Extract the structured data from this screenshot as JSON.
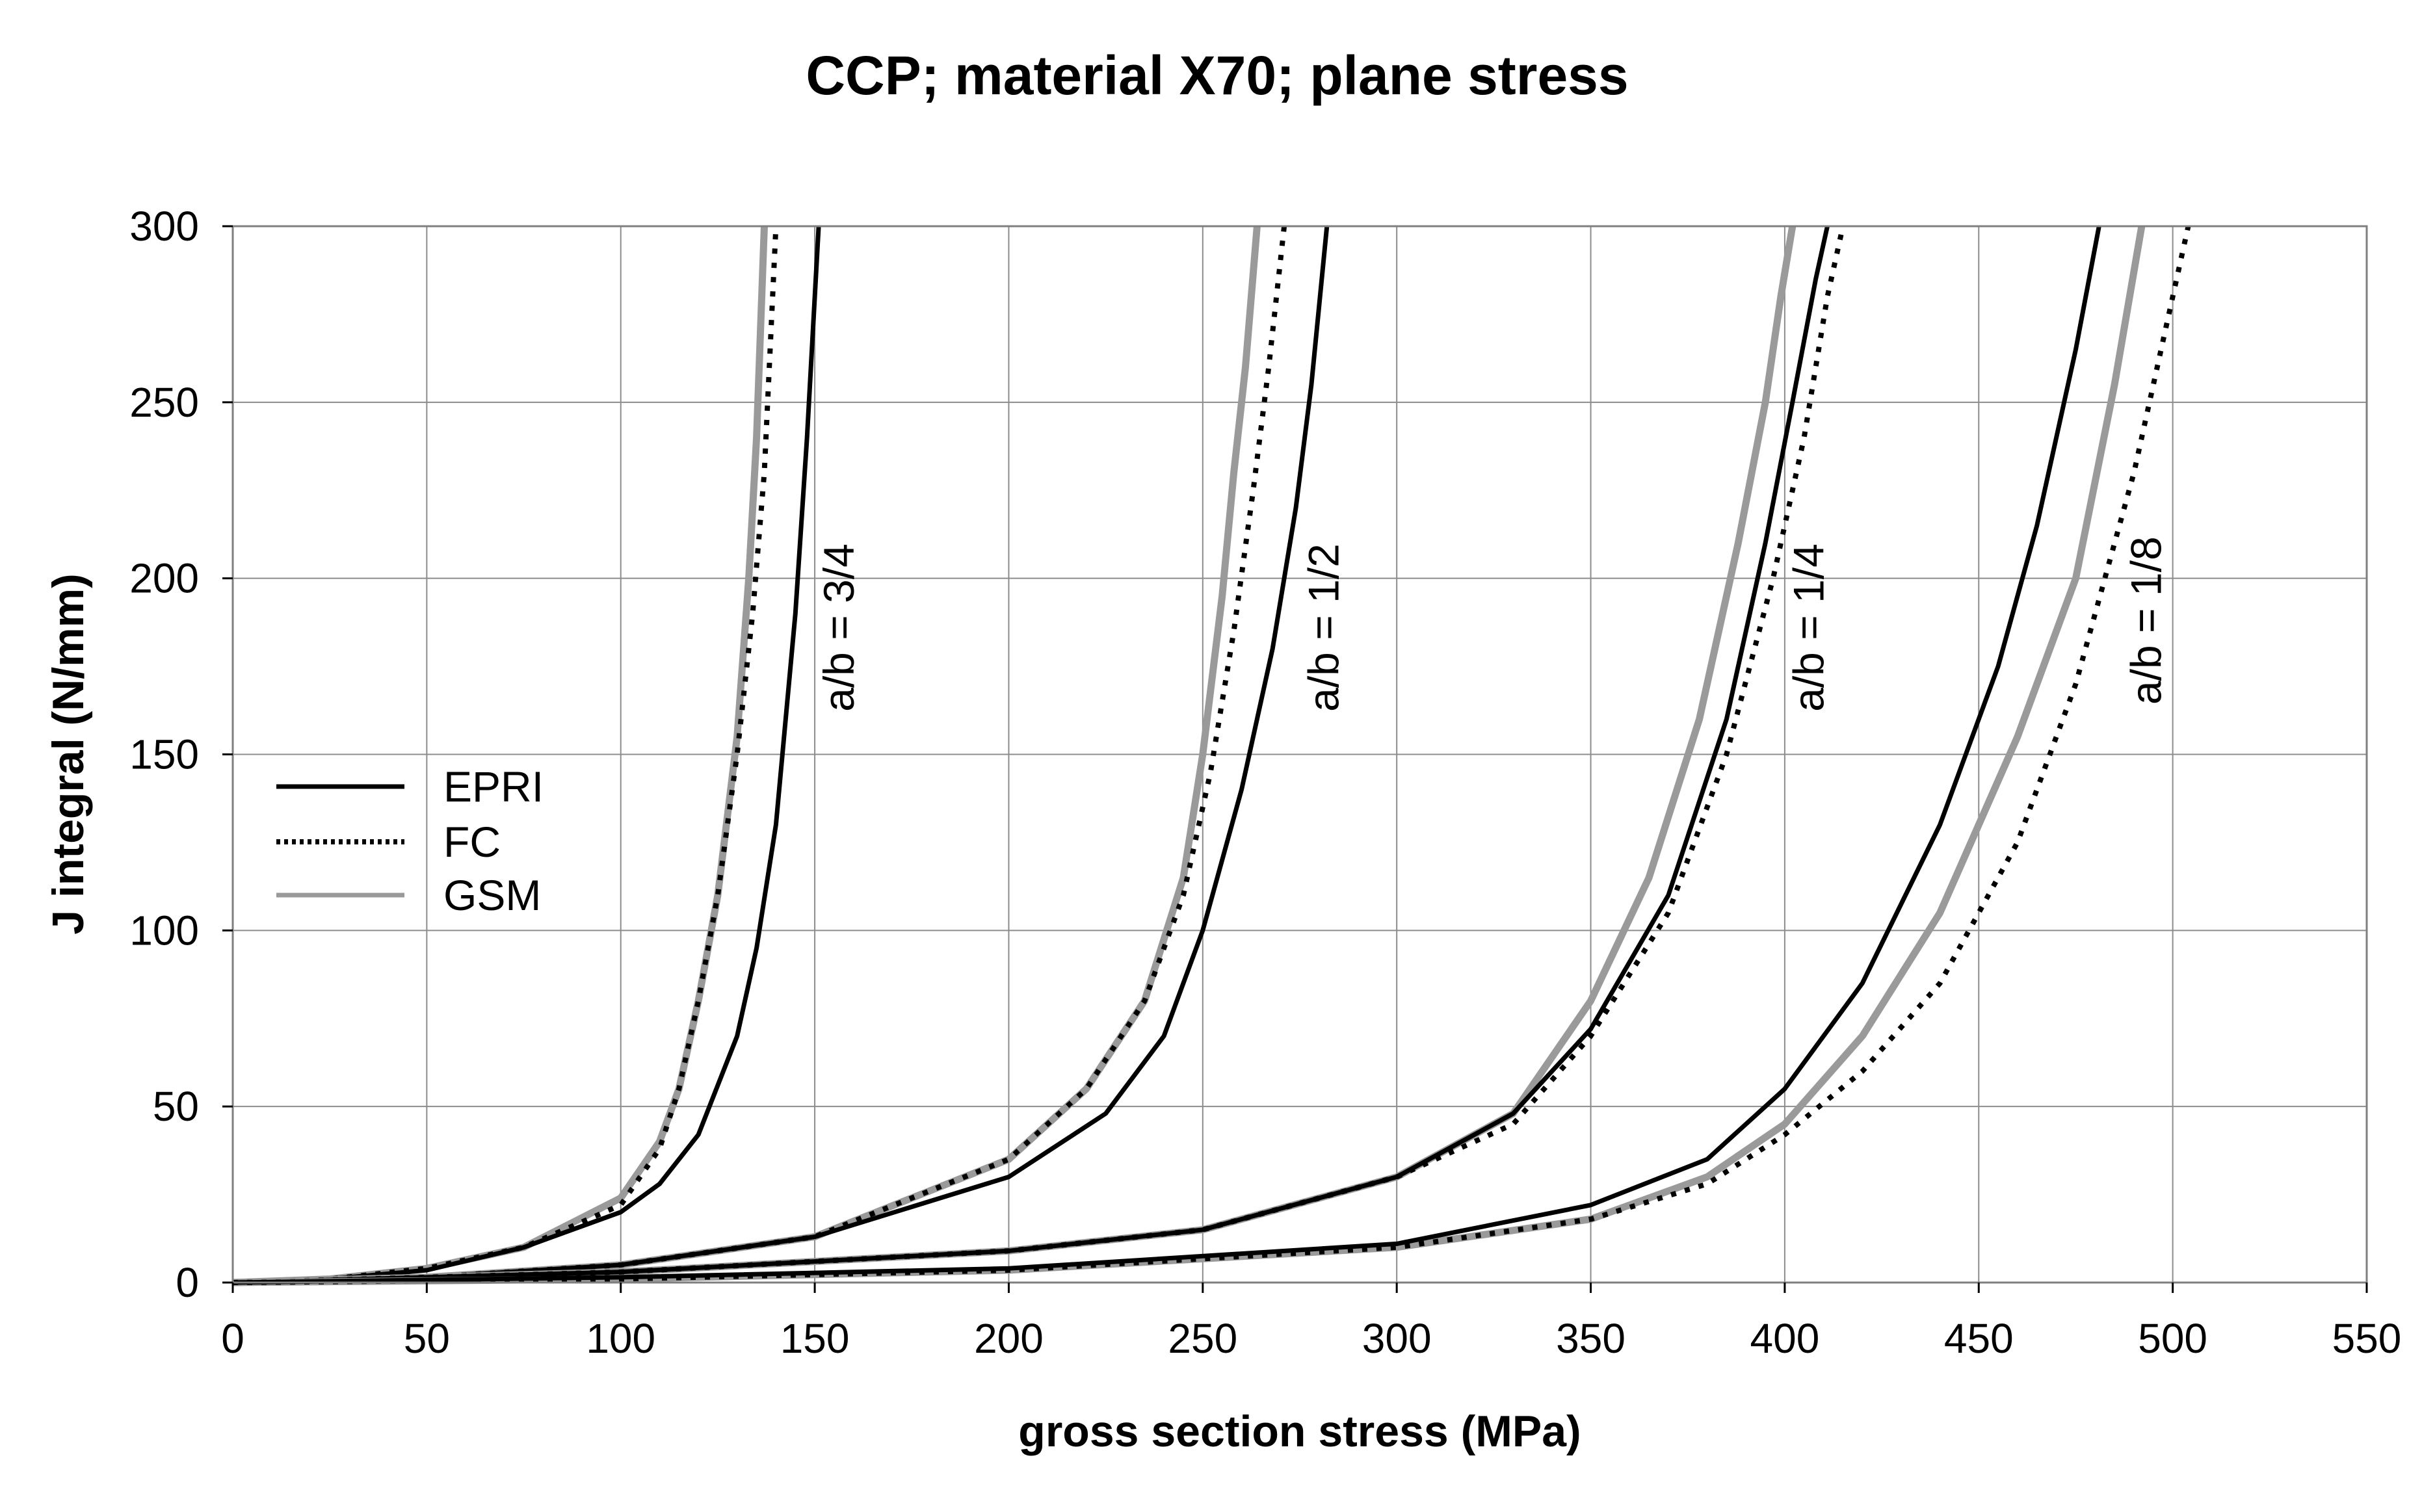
{
  "chart_data": {
    "type": "line",
    "title": "CCP; material X70; plane stress",
    "xlabel": "gross section stress (MPa)",
    "ylabel": "J integral (N/mm)",
    "xlim": [
      0,
      550
    ],
    "ylim": [
      0,
      300
    ],
    "xticks": [
      0,
      50,
      100,
      150,
      200,
      250,
      300,
      350,
      400,
      450,
      500,
      550
    ],
    "yticks": [
      0,
      50,
      100,
      150,
      200,
      250,
      300
    ],
    "grid": true,
    "legend_position": "left-middle",
    "legend": [
      {
        "name": "EPRI",
        "style": "solid",
        "color": "#000000"
      },
      {
        "name": "FC",
        "style": "dotted",
        "color": "#000000"
      },
      {
        "name": "GSM",
        "style": "solid",
        "color": "#999999"
      }
    ],
    "groups": [
      {
        "label": "a/b = 3/4",
        "label_anchor": [
          160,
          186
        ],
        "series": [
          {
            "name": "EPRI",
            "x": [
              0,
              25,
              50,
              75,
              100,
              110,
              120,
              130,
              135,
              140,
              145,
              148,
              151
            ],
            "y": [
              0,
              1,
              3.5,
              10,
              20,
              28,
              42,
              70,
              95,
              130,
              190,
              240,
              300
            ]
          },
          {
            "name": "FC",
            "x": [
              0,
              25,
              50,
              75,
              100,
              110,
              115,
              120,
              125,
              130,
              134,
              137,
              140
            ],
            "y": [
              0,
              1,
              4,
              10,
              22,
              38,
              55,
              80,
              110,
              150,
              190,
              230,
              300
            ]
          },
          {
            "name": "GSM",
            "x": [
              0,
              25,
              50,
              75,
              100,
              110,
              115,
              120,
              125,
              130,
              133,
              135,
              137
            ],
            "y": [
              0,
              1,
              4,
              10,
              24,
              40,
              55,
              80,
              110,
              155,
              200,
              240,
              300
            ]
          }
        ]
      },
      {
        "label": "a/b = 1/2",
        "label_anchor": [
          285,
          186
        ],
        "series": [
          {
            "name": "EPRI",
            "x": [
              0,
              50,
              100,
              150,
              200,
              225,
              240,
              250,
              260,
              268,
              274,
              278,
              282
            ],
            "y": [
              0,
              1.5,
              5,
              13,
              30,
              48,
              70,
              100,
              140,
              180,
              220,
              255,
              300
            ]
          },
          {
            "name": "FC",
            "x": [
              0,
              50,
              100,
              150,
              200,
              220,
              235,
              245,
              252,
              258,
              263,
              267,
              271
            ],
            "y": [
              0,
              1.5,
              5,
              13,
              35,
              55,
              80,
              110,
              145,
              185,
              225,
              260,
              300
            ]
          },
          {
            "name": "GSM",
            "x": [
              0,
              50,
              100,
              150,
              200,
              220,
              235,
              245,
              250,
              255,
              258,
              261,
              264
            ],
            "y": [
              0,
              1.5,
              5,
              13,
              35,
              55,
              80,
              115,
              150,
              195,
              230,
              260,
              300
            ]
          }
        ]
      },
      {
        "label": "a/b = 1/4",
        "label_anchor": [
          410,
          186
        ],
        "series": [
          {
            "name": "EPRI",
            "x": [
              0,
              100,
              200,
              250,
              300,
              330,
              350,
              370,
              385,
              395,
              402,
              408,
              411
            ],
            "y": [
              0,
              3,
              9,
              15,
              30,
              48,
              72,
              110,
              160,
              210,
              250,
              285,
              300
            ]
          },
          {
            "name": "FC",
            "x": [
              0,
              100,
              200,
              250,
              300,
              330,
              350,
              370,
              385,
              397,
              405,
              411,
              415
            ],
            "y": [
              0,
              3,
              9,
              15,
              30,
              45,
              70,
              105,
              150,
              200,
              240,
              280,
              300
            ]
          },
          {
            "name": "GSM",
            "x": [
              0,
              100,
              200,
              250,
              300,
              330,
              350,
              365,
              378,
              388,
              395,
              399,
              402
            ],
            "y": [
              0,
              3,
              9,
              15,
              30,
              48,
              80,
              115,
              160,
              210,
              250,
              280,
              300
            ]
          }
        ]
      },
      {
        "label": "a/b = 1/8",
        "label_anchor": [
          497,
          188
        ],
        "series": [
          {
            "name": "EPRI",
            "x": [
              0,
              100,
              200,
              300,
              350,
              380,
              400,
              420,
              440,
              455,
              465,
              475,
              481
            ],
            "y": [
              0,
              1.5,
              4,
              11,
              22,
              35,
              55,
              85,
              130,
              175,
              215,
              265,
              300
            ]
          },
          {
            "name": "FC",
            "x": [
              0,
              100,
              200,
              300,
              350,
              380,
              400,
              420,
              440,
              460,
              475,
              490,
              504
            ],
            "y": [
              0,
              1,
              3.5,
              10,
              18,
              28,
              42,
              60,
              85,
              125,
              170,
              230,
              300
            ]
          },
          {
            "name": "GSM",
            "x": [
              0,
              100,
              200,
              300,
              350,
              380,
              400,
              420,
              440,
              460,
              475,
              485,
              492
            ],
            "y": [
              0,
              1,
              3.5,
              10,
              18,
              30,
              45,
              70,
              105,
              155,
              200,
              255,
              300
            ]
          }
        ]
      }
    ]
  }
}
